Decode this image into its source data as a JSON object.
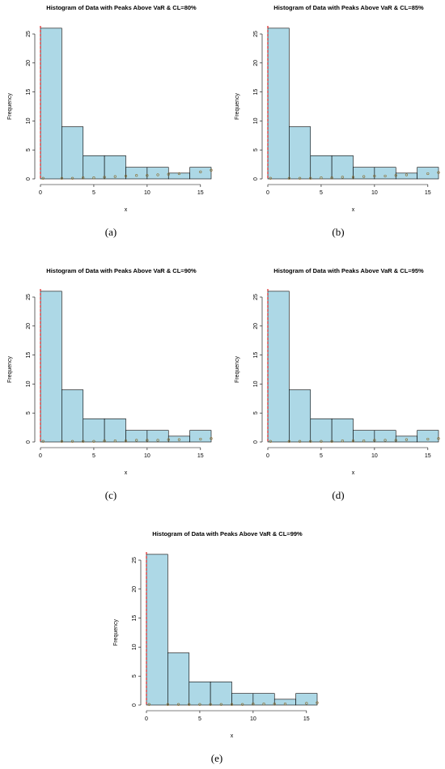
{
  "chart_data": [
    {
      "type": "histogram",
      "title": "Histogram of Data with Peaks Above VaR & CL=80%",
      "caption": "(a)",
      "xlabel": "x",
      "ylabel": "Frequency",
      "bins": [
        0,
        2,
        4,
        6,
        8,
        10,
        12,
        14,
        16
      ],
      "values": [
        26,
        9,
        4,
        4,
        2,
        2,
        1,
        2
      ],
      "color": "#add8e6",
      "xlim": [
        0,
        16
      ],
      "xticks": [
        0,
        5,
        10,
        15
      ],
      "ylim": [
        0,
        25
      ],
      "yticks": [
        0,
        5,
        10,
        15,
        20,
        25
      ],
      "vline": 0,
      "points": {
        "x": [
          0.25,
          2,
          3,
          4,
          5,
          6,
          7,
          8,
          9,
          10,
          11,
          12,
          13,
          15,
          16
        ],
        "y": [
          0.1,
          0.1,
          0.1,
          0.2,
          0.2,
          0.3,
          0.4,
          0.5,
          0.6,
          0.6,
          0.7,
          0.8,
          0.9,
          1.2,
          1.5
        ]
      }
    },
    {
      "type": "histogram",
      "title": "Histogram of Data with Peaks Above VaR & CL=85%",
      "caption": "(b)",
      "xlabel": "x",
      "ylabel": "Frequency",
      "bins": [
        0,
        2,
        4,
        6,
        8,
        10,
        12,
        14,
        16
      ],
      "values": [
        26,
        9,
        4,
        4,
        2,
        2,
        1,
        2
      ],
      "color": "#add8e6",
      "xlim": [
        0,
        16
      ],
      "xticks": [
        0,
        5,
        10,
        15
      ],
      "ylim": [
        0,
        25
      ],
      "yticks": [
        0,
        5,
        10,
        15,
        20,
        25
      ],
      "vline": 0,
      "points": {
        "x": [
          0.25,
          2,
          3,
          4,
          5,
          6,
          7,
          8,
          9,
          10,
          11,
          12,
          13,
          15,
          16
        ],
        "y": [
          0.1,
          0.1,
          0.1,
          0.1,
          0.2,
          0.2,
          0.3,
          0.3,
          0.4,
          0.5,
          0.5,
          0.6,
          0.7,
          0.9,
          1.1
        ]
      }
    },
    {
      "type": "histogram",
      "title": "Histogram of Data with Peaks Above VaR & CL=90%",
      "caption": "(c)",
      "xlabel": "x",
      "ylabel": "Frequency",
      "bins": [
        0,
        2,
        4,
        6,
        8,
        10,
        12,
        14,
        16
      ],
      "values": [
        26,
        9,
        4,
        4,
        2,
        2,
        1,
        2
      ],
      "color": "#add8e6",
      "xlim": [
        0,
        16
      ],
      "xticks": [
        0,
        5,
        10,
        15
      ],
      "ylim": [
        0,
        25
      ],
      "yticks": [
        0,
        5,
        10,
        15,
        20,
        25
      ],
      "vline": 0,
      "points": {
        "x": [
          0.25,
          2,
          3,
          4,
          5,
          6,
          7,
          8,
          9,
          10,
          11,
          12,
          13,
          15,
          16
        ],
        "y": [
          0.1,
          0.1,
          0.1,
          0.1,
          0.1,
          0.2,
          0.2,
          0.2,
          0.3,
          0.3,
          0.3,
          0.4,
          0.4,
          0.5,
          0.6
        ]
      }
    },
    {
      "type": "histogram",
      "title": "Histogram of Data with Peaks Above VaR & CL=95%",
      "caption": "(d)",
      "xlabel": "x",
      "ylabel": "Frequency",
      "bins": [
        0,
        2,
        4,
        6,
        8,
        10,
        12,
        14,
        16
      ],
      "values": [
        26,
        9,
        4,
        4,
        2,
        2,
        1,
        2
      ],
      "color": "#add8e6",
      "xlim": [
        0,
        16
      ],
      "xticks": [
        0,
        5,
        10,
        15
      ],
      "ylim": [
        0,
        25
      ],
      "yticks": [
        0,
        5,
        10,
        15,
        20,
        25
      ],
      "vline": 0,
      "points": {
        "x": [
          0.25,
          2,
          3,
          4,
          5,
          6,
          7,
          8,
          9,
          10,
          11,
          12,
          13,
          15,
          16
        ],
        "y": [
          0.1,
          0.1,
          0.1,
          0.1,
          0.1,
          0.1,
          0.2,
          0.2,
          0.2,
          0.3,
          0.3,
          0.3,
          0.4,
          0.5,
          0.6
        ]
      }
    },
    {
      "type": "histogram",
      "title": "Histogram of Data with Peaks Above VaR & CL=99%",
      "caption": "(e)",
      "xlabel": "x",
      "ylabel": "Frequency",
      "bins": [
        0,
        2,
        4,
        6,
        8,
        10,
        12,
        14,
        16
      ],
      "values": [
        26,
        9,
        4,
        4,
        2,
        2,
        1,
        2
      ],
      "color": "#add8e6",
      "xlim": [
        0,
        16
      ],
      "xticks": [
        0,
        5,
        10,
        15
      ],
      "ylim": [
        0,
        25
      ],
      "yticks": [
        0,
        5,
        10,
        15,
        20,
        25
      ],
      "vline": 0,
      "points": {
        "x": [
          0.25,
          2,
          3,
          4,
          5,
          6,
          7,
          8,
          9,
          10,
          11,
          12,
          13,
          15,
          16
        ],
        "y": [
          0.1,
          0.1,
          0.1,
          0.1,
          0.1,
          0.1,
          0.1,
          0.1,
          0.1,
          0.2,
          0.2,
          0.2,
          0.2,
          0.3,
          0.4
        ]
      }
    }
  ]
}
